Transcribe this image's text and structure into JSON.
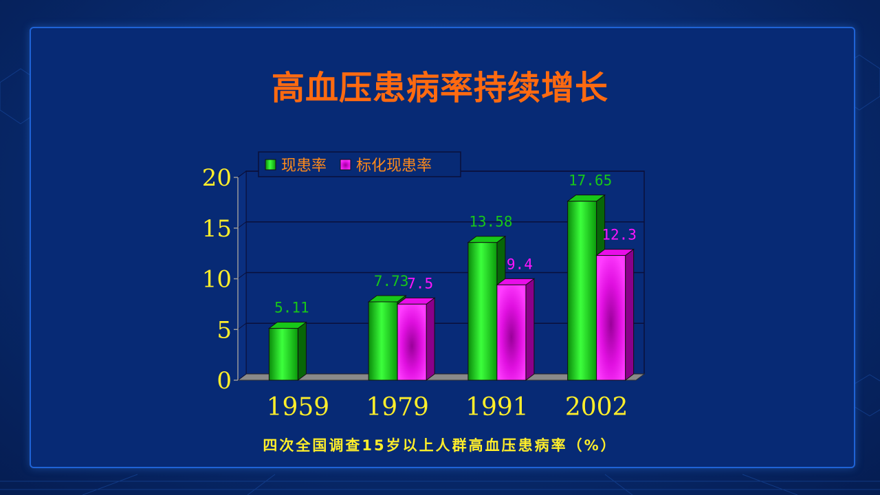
{
  "slide": {
    "title": "高血压患病率持续增长",
    "caption": "四次全国调查15岁以上人群高血压患病率（%）"
  },
  "colors": {
    "background": "#072a75",
    "title": "#ff6a10",
    "axis_text": "#ffee2a",
    "series1": "#18c818",
    "series2": "#ff14ff"
  },
  "chart_data": {
    "type": "bar",
    "categories": [
      "1959",
      "1979",
      "1991",
      "2002"
    ],
    "series": [
      {
        "name": "现患率",
        "values": [
          5.11,
          7.73,
          13.58,
          17.65
        ],
        "labels": [
          "5.11",
          "7.73",
          "13.58",
          "17.65"
        ]
      },
      {
        "name": "标化现患率",
        "values": [
          null,
          7.5,
          9.4,
          12.3
        ],
        "labels": [
          "",
          "7.5",
          "9.4",
          "12.3"
        ]
      }
    ],
    "yticks": [
      "0",
      "5",
      "10",
      "15",
      "20"
    ],
    "ylim": [
      0,
      20
    ],
    "grid": true,
    "legend_position": "top-left",
    "bar_style": "3d"
  }
}
